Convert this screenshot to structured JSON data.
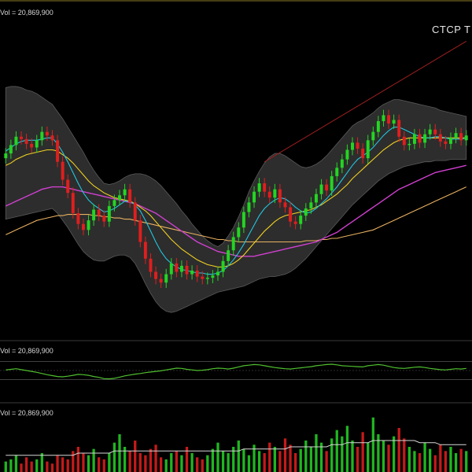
{
  "chart_data": [
    {
      "type": "candlestick",
      "panel": "price",
      "title": "CTCP T",
      "label": "Vol = 20,869,900",
      "legend": "none",
      "grid": false,
      "close": [
        42.8,
        43.5,
        44.2,
        44.0,
        43.6,
        43.3,
        43.9,
        44.6,
        44.3,
        43.9,
        42.1,
        40.6,
        39.5,
        37.8,
        36.9,
        36.4,
        37.2,
        38.1,
        37.6,
        37.1,
        38.4,
        38.9,
        39.3,
        39.8,
        38.7,
        37.2,
        35.4,
        34.0,
        32.9,
        32.3,
        32.0,
        32.7,
        33.6,
        32.9,
        33.4,
        32.7,
        33.0,
        32.5,
        32.3,
        32.4,
        32.6,
        32.9,
        33.8,
        34.7,
        35.8,
        36.6,
        37.9,
        38.7,
        39.6,
        40.3,
        39.6,
        39.1,
        39.8,
        38.7,
        38.3,
        37.1,
        36.9,
        37.6,
        38.2,
        38.7,
        39.4,
        40.2,
        39.7,
        40.9,
        41.6,
        42.3,
        43.1,
        43.7,
        43.2,
        42.4,
        43.9,
        44.6,
        45.5,
        46.0,
        45.3,
        45.6,
        44.2,
        43.5,
        43.6,
        44.4,
        43.7,
        44.4,
        44.8,
        44.4,
        43.8,
        43.6,
        44.1,
        44.5,
        43.9,
        44.3
      ],
      "bb_upper": [
        48.3,
        48.4,
        48.4,
        48.3,
        48.1,
        48.0,
        47.8,
        47.5,
        47.2,
        46.9,
        46.3,
        45.7,
        45.0,
        44.3,
        43.6,
        42.9,
        42.1,
        41.4,
        40.8,
        40.3,
        40.2,
        40.3,
        40.5,
        40.8,
        41.0,
        41.1,
        41.1,
        41.0,
        40.8,
        40.5,
        40.1,
        39.6,
        39.1,
        38.6,
        38.0,
        37.5,
        36.9,
        36.4,
        35.9,
        35.5,
        35.2,
        35.0,
        35.3,
        35.9,
        36.6,
        37.5,
        38.5,
        39.6,
        40.5,
        41.3,
        42.0,
        42.5,
        42.8,
        42.8,
        42.6,
        42.3,
        42.0,
        41.7,
        41.6,
        41.7,
        41.9,
        42.2,
        42.6,
        43.1,
        43.6,
        44.1,
        44.6,
        45.1,
        45.4,
        45.6,
        45.9,
        46.2,
        46.6,
        46.9,
        47.1,
        47.3,
        47.3,
        47.2,
        47.1,
        47.0,
        46.9,
        46.8,
        46.7,
        46.6,
        46.4,
        46.3,
        46.2,
        46.1,
        46.0,
        45.9
      ],
      "bb_lower": [
        37.3,
        37.4,
        37.5,
        37.6,
        37.7,
        37.8,
        37.9,
        38.0,
        38.1,
        38.2,
        37.8,
        37.2,
        36.6,
        35.9,
        35.2,
        34.6,
        34.2,
        33.9,
        33.8,
        33.8,
        34.0,
        34.2,
        34.3,
        34.3,
        34.1,
        33.6,
        32.8,
        31.9,
        31.1,
        30.4,
        29.9,
        29.6,
        29.5,
        29.6,
        29.8,
        30.0,
        30.2,
        30.4,
        30.6,
        30.8,
        31.0,
        31.2,
        31.3,
        31.4,
        31.5,
        31.6,
        31.7,
        31.9,
        32.1,
        32.3,
        32.4,
        32.5,
        32.5,
        32.6,
        32.7,
        32.9,
        33.2,
        33.6,
        34.0,
        34.5,
        35.0,
        35.5,
        36.0,
        36.5,
        37.0,
        37.5,
        38.0,
        38.5,
        38.9,
        39.3,
        39.7,
        40.1,
        40.5,
        40.8,
        41.1,
        41.3,
        41.5,
        41.7,
        41.8,
        41.9,
        42.0,
        42.1,
        42.1,
        42.2,
        42.2,
        42.2,
        42.3,
        42.3,
        42.3,
        42.3
      ],
      "ma_fast": [
        43.0,
        43.3,
        43.6,
        43.8,
        43.9,
        43.9,
        43.9,
        44.0,
        44.1,
        44.1,
        43.6,
        42.9,
        42.1,
        41.2,
        40.3,
        39.5,
        38.9,
        38.5,
        38.2,
        37.9,
        38.0,
        38.2,
        38.5,
        38.8,
        38.8,
        38.5,
        38.0,
        37.2,
        36.3,
        35.4,
        34.6,
        34.0,
        33.6,
        33.3,
        33.1,
        33.0,
        32.9,
        32.8,
        32.8,
        32.7,
        32.7,
        32.8,
        33.0,
        33.4,
        33.9,
        34.5,
        35.2,
        36.0,
        36.8,
        37.6,
        38.2,
        38.6,
        38.9,
        39.1,
        39.0,
        38.7,
        38.3,
        38.0,
        37.8,
        37.9,
        38.2,
        38.6,
        39.0,
        39.5,
        40.0,
        40.6,
        41.2,
        41.8,
        42.3,
        42.6,
        42.9,
        43.3,
        43.8,
        44.3,
        44.7,
        45.0,
        45.0,
        44.8,
        44.6,
        44.4,
        44.2,
        44.1,
        44.1,
        44.2,
        44.2,
        44.1,
        44.0,
        44.0,
        44.0,
        44.1
      ],
      "ma_mid": [
        41.8,
        42.0,
        42.3,
        42.5,
        42.7,
        42.8,
        42.9,
        43.0,
        43.1,
        43.1,
        43.0,
        42.7,
        42.4,
        42.0,
        41.5,
        41.0,
        40.5,
        40.1,
        39.8,
        39.5,
        39.3,
        39.1,
        39.0,
        38.9,
        38.8,
        38.6,
        38.3,
        38.0,
        37.6,
        37.1,
        36.6,
        36.1,
        35.6,
        35.2,
        34.8,
        34.5,
        34.2,
        33.9,
        33.7,
        33.5,
        33.4,
        33.3,
        33.3,
        33.4,
        33.6,
        33.9,
        34.3,
        34.8,
        35.3,
        35.8,
        36.3,
        36.7,
        37.1,
        37.4,
        37.6,
        37.7,
        37.8,
        37.9,
        38.0,
        38.1,
        38.3,
        38.5,
        38.8,
        39.1,
        39.4,
        39.8,
        40.2,
        40.7,
        41.1,
        41.5,
        41.9,
        42.3,
        42.7,
        43.1,
        43.4,
        43.7,
        43.9,
        44.0,
        44.1,
        44.1,
        44.1,
        44.1,
        44.1,
        44.1,
        44.1,
        44.1,
        44.1,
        44.1,
        44.1,
        44.1
      ],
      "ma_slow": [
        38.4,
        38.6,
        38.8,
        39.0,
        39.2,
        39.4,
        39.6,
        39.8,
        39.9,
        40.0,
        40.0,
        40.0,
        39.9,
        39.8,
        39.7,
        39.6,
        39.5,
        39.4,
        39.3,
        39.2,
        39.1,
        39.0,
        38.9,
        38.8,
        38.7,
        38.6,
        38.4,
        38.2,
        38.0,
        37.8,
        37.5,
        37.2,
        36.9,
        36.6,
        36.3,
        36.0,
        35.7,
        35.4,
        35.2,
        35.0,
        34.8,
        34.6,
        34.5,
        34.4,
        34.3,
        34.2,
        34.2,
        34.2,
        34.2,
        34.3,
        34.4,
        34.5,
        34.6,
        34.7,
        34.8,
        34.9,
        35.0,
        35.1,
        35.2,
        35.3,
        35.4,
        35.6,
        35.8,
        36.0,
        36.2,
        36.5,
        36.8,
        37.1,
        37.4,
        37.7,
        38.0,
        38.3,
        38.6,
        38.9,
        39.2,
        39.5,
        39.8,
        40.0,
        40.2,
        40.4,
        40.6,
        40.8,
        41.0,
        41.2,
        41.3,
        41.4,
        41.5,
        41.6,
        41.7,
        41.8
      ],
      "ma_long": [
        36.0,
        36.2,
        36.4,
        36.6,
        36.8,
        37.0,
        37.2,
        37.3,
        37.4,
        37.5,
        37.6,
        37.6,
        37.7,
        37.7,
        37.7,
        37.7,
        37.7,
        37.6,
        37.6,
        37.5,
        37.5,
        37.4,
        37.4,
        37.3,
        37.3,
        37.2,
        37.1,
        37.0,
        36.9,
        36.8,
        36.7,
        36.6,
        36.5,
        36.4,
        36.3,
        36.2,
        36.1,
        36.0,
        35.9,
        35.8,
        35.7,
        35.6,
        35.6,
        35.5,
        35.5,
        35.4,
        35.4,
        35.4,
        35.4,
        35.4,
        35.4,
        35.4,
        35.4,
        35.4,
        35.4,
        35.4,
        35.4,
        35.4,
        35.5,
        35.5,
        35.5,
        35.6,
        35.6,
        35.7,
        35.7,
        35.8,
        35.9,
        36.0,
        36.1,
        36.2,
        36.3,
        36.4,
        36.6,
        36.8,
        37.0,
        37.2,
        37.4,
        37.6,
        37.8,
        38.0,
        38.2,
        38.4,
        38.6,
        38.8,
        39.0,
        39.2,
        39.4,
        39.6,
        39.8,
        40.0
      ],
      "ylim": [
        28.0,
        53.0
      ],
      "colors": {
        "up": "#22d622",
        "down": "#e01e1e",
        "bb": "#3c3c3c",
        "ma_fast": "#1fc7e0",
        "ma_mid": "#f0d020",
        "ma_slow": "#d040d0",
        "ma_long": "#e8b060",
        "trend": "#a02020"
      }
    },
    {
      "type": "line",
      "panel": "oscillator",
      "label": "Vol = 20,869,900",
      "values": [
        52,
        54,
        56,
        53,
        50,
        47,
        44,
        40,
        36,
        33,
        30,
        29,
        31,
        34,
        37,
        36,
        34,
        30,
        27,
        23,
        22,
        24,
        28,
        32,
        35,
        38,
        40,
        43,
        45,
        47,
        49,
        52,
        55,
        58,
        57,
        54,
        52,
        50,
        51,
        53,
        56,
        58,
        57,
        55,
        58,
        62,
        66,
        68,
        70,
        69,
        66,
        63,
        60,
        58,
        56,
        55,
        57,
        59,
        61,
        63,
        66,
        68,
        70,
        71,
        69,
        66,
        65,
        64,
        63,
        62,
        66,
        68,
        70,
        68,
        64,
        60,
        58,
        57,
        59,
        61,
        62,
        60,
        57,
        55,
        53,
        52,
        54,
        56,
        55,
        57
      ],
      "ylim": [
        0,
        100
      ],
      "levels": [
        80,
        20
      ],
      "color": "#4fbf2f"
    },
    {
      "type": "bar",
      "panel": "volume",
      "label": "Vol = 20,869,900",
      "values": [
        5,
        6,
        8,
        4,
        7,
        5,
        6,
        9,
        5,
        4,
        8,
        7,
        6,
        10,
        12,
        9,
        8,
        11,
        7,
        6,
        9,
        14,
        18,
        12,
        10,
        15,
        9,
        8,
        11,
        13,
        7,
        6,
        9,
        10,
        8,
        12,
        9,
        7,
        6,
        8,
        11,
        14,
        10,
        9,
        12,
        15,
        11,
        8,
        13,
        10,
        9,
        14,
        12,
        10,
        16,
        13,
        9,
        11,
        15,
        12,
        18,
        14,
        10,
        16,
        20,
        17,
        22,
        15,
        12,
        19,
        14,
        26,
        18,
        15,
        13,
        17,
        21,
        16,
        12,
        10,
        9,
        14,
        11,
        8,
        13,
        10,
        12,
        9,
        11,
        10
      ],
      "avg": [
        8,
        8,
        8,
        8,
        8,
        8,
        8,
        8,
        8,
        8,
        8,
        8,
        8,
        8,
        9,
        9,
        9,
        9,
        9,
        9,
        9,
        10,
        10,
        10,
        10,
        10,
        10,
        10,
        10,
        10,
        10,
        10,
        10,
        10,
        10,
        10,
        10,
        10,
        10,
        10,
        10,
        10,
        10,
        10,
        10,
        10,
        11,
        11,
        11,
        11,
        11,
        11,
        11,
        11,
        11,
        12,
        12,
        12,
        12,
        12,
        12,
        12,
        12,
        13,
        13,
        13,
        14,
        14,
        14,
        14,
        14,
        15,
        15,
        15,
        15,
        15,
        15,
        15,
        15,
        15,
        14,
        14,
        14,
        14,
        13,
        13,
        13,
        13,
        13,
        13
      ],
      "ylim": [
        0,
        30
      ]
    }
  ]
}
